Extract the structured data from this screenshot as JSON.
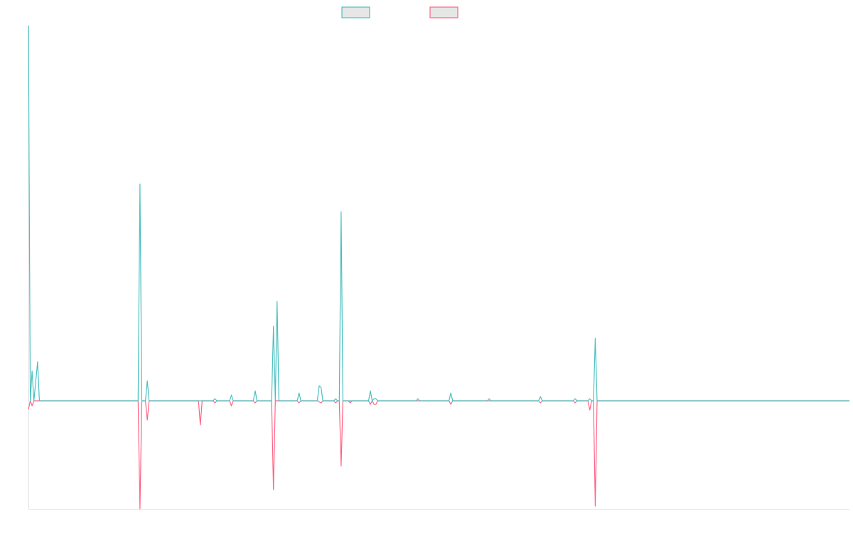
{
  "chart_data": {
    "type": "line",
    "title": "",
    "xlabel": "",
    "ylabel": "",
    "xlim": [
      0,
      449
    ],
    "ylim": [
      -152,
      528
    ],
    "grid": false,
    "legend": {
      "placement": "top",
      "entries": [
        {
          "label": "",
          "color": "#4bc0c0",
          "fill": "#e6e6e6"
        },
        {
          "label": "",
          "color": "#ff6384",
          "fill": "#e6e6e6"
        }
      ]
    },
    "series": [
      {
        "color": "#4bc0c0",
        "points": [
          [
            0,
            528
          ],
          [
            1,
            0
          ],
          [
            2,
            42
          ],
          [
            3,
            0
          ],
          [
            5,
            55
          ],
          [
            6,
            0
          ],
          [
            60,
            0
          ],
          [
            61,
            305
          ],
          [
            62,
            0
          ],
          [
            64,
            0
          ],
          [
            65,
            28
          ],
          [
            66,
            0
          ],
          [
            101,
            0
          ],
          [
            102,
            3
          ],
          [
            103,
            0
          ],
          [
            110,
            0
          ],
          [
            111,
            8
          ],
          [
            112,
            0
          ],
          [
            123,
            0
          ],
          [
            124,
            14
          ],
          [
            125,
            0
          ],
          [
            133,
            0
          ],
          [
            134,
            105
          ],
          [
            135,
            0
          ],
          [
            136,
            140
          ],
          [
            137,
            0
          ],
          [
            147,
            0
          ],
          [
            148,
            11
          ],
          [
            149,
            0
          ],
          [
            158,
            0
          ],
          [
            159,
            21
          ],
          [
            160,
            19
          ],
          [
            161,
            0
          ],
          [
            167,
            0
          ],
          [
            168,
            3
          ],
          [
            169,
            0
          ],
          [
            170,
            0
          ],
          [
            171,
            266
          ],
          [
            172,
            0
          ],
          [
            186,
            0
          ],
          [
            187,
            14
          ],
          [
            188,
            0
          ],
          [
            189,
            3
          ],
          [
            190,
            3
          ],
          [
            191,
            0
          ],
          [
            212,
            0
          ],
          [
            213,
            3
          ],
          [
            214,
            0
          ],
          [
            230,
            0
          ],
          [
            231,
            11
          ],
          [
            232,
            0
          ],
          [
            251,
            0
          ],
          [
            252,
            3
          ],
          [
            253,
            0
          ],
          [
            279,
            0
          ],
          [
            280,
            6
          ],
          [
            281,
            0
          ],
          [
            298,
            0
          ],
          [
            299,
            3
          ],
          [
            300,
            0
          ],
          [
            306,
            0
          ],
          [
            307,
            3
          ],
          [
            308,
            0
          ],
          [
            309,
            0
          ],
          [
            310,
            88
          ],
          [
            311,
            0
          ],
          [
            449,
            0
          ]
        ]
      },
      {
        "color": "#ff6384",
        "points": [
          [
            0,
            -12
          ],
          [
            1,
            0
          ],
          [
            2,
            -7
          ],
          [
            3,
            0
          ],
          [
            60,
            0
          ],
          [
            61,
            -152
          ],
          [
            62,
            0
          ],
          [
            64,
            0
          ],
          [
            65,
            -27
          ],
          [
            66,
            0
          ],
          [
            93,
            0
          ],
          [
            94,
            -34
          ],
          [
            95,
            0
          ],
          [
            101,
            0
          ],
          [
            102,
            -3
          ],
          [
            103,
            0
          ],
          [
            110,
            0
          ],
          [
            111,
            -7
          ],
          [
            112,
            0
          ],
          [
            123,
            0
          ],
          [
            124,
            -3
          ],
          [
            125,
            0
          ],
          [
            133,
            0
          ],
          [
            134,
            -125
          ],
          [
            135,
            0
          ],
          [
            147,
            0
          ],
          [
            148,
            -3
          ],
          [
            149,
            0
          ],
          [
            158,
            0
          ],
          [
            160,
            -3
          ],
          [
            161,
            0
          ],
          [
            167,
            0
          ],
          [
            168,
            -3
          ],
          [
            169,
            0
          ],
          [
            170,
            0
          ],
          [
            171,
            -92
          ],
          [
            172,
            0
          ],
          [
            175,
            0
          ],
          [
            176,
            -3
          ],
          [
            177,
            0
          ],
          [
            186,
            0
          ],
          [
            187,
            -5
          ],
          [
            188,
            0
          ],
          [
            189,
            -5
          ],
          [
            190,
            -5
          ],
          [
            191,
            0
          ],
          [
            230,
            0
          ],
          [
            231,
            -5
          ],
          [
            232,
            0
          ],
          [
            279,
            0
          ],
          [
            280,
            -3
          ],
          [
            281,
            0
          ],
          [
            298,
            0
          ],
          [
            299,
            -3
          ],
          [
            300,
            0
          ],
          [
            306,
            0
          ],
          [
            307,
            -13
          ],
          [
            308,
            0
          ],
          [
            309,
            0
          ],
          [
            310,
            -148
          ],
          [
            311,
            0
          ],
          [
            449,
            0
          ]
        ]
      }
    ]
  }
}
